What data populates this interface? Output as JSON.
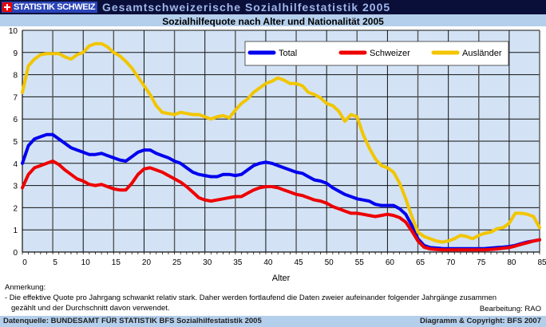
{
  "header": {
    "logo_text": "STATISTIK SCHWEIZ",
    "title": "Gesamtschweizerische Sozialhilfestatistik 2005"
  },
  "footer": {
    "note_title": "Anmerkung:",
    "note_line1": "- Die effektive Quote pro Jahrgang schwankt relativ stark. Daher werden fortlaufend die Daten zweier aufeinander folgender Jahrgänge zusammen",
    "note_line2": "gezählt und der Durchschnitt davon verwendet.",
    "editor": "Bearbeitung: RAO",
    "source": "Datenquelle: BUNDESAMT FÜR STATISTIK BFS Sozialhilfestatistik 2005",
    "copyright": "Diagramm & Copyright:  BFS 2007"
  },
  "chart_data": {
    "type": "line",
    "title": "Sozialhilfequote nach Alter und Nationalität 2005",
    "xlabel": "Alter",
    "ylabel": "",
    "xlim": [
      0,
      85
    ],
    "ylim": [
      0,
      10
    ],
    "grid": true,
    "legend": "top-right",
    "xticks": [
      "0",
      "5",
      "10",
      "15",
      "20",
      "25",
      "30",
      "35",
      "40",
      "45",
      "50",
      "55",
      "60",
      "65",
      "70",
      "75",
      "80",
      "85"
    ],
    "yticks": [
      "0",
      "1",
      "2",
      "3",
      "4",
      "5",
      "6",
      "7",
      "8",
      "9",
      "10"
    ],
    "x": [
      0,
      1,
      2,
      3,
      4,
      5,
      6,
      7,
      8,
      9,
      10,
      11,
      12,
      13,
      14,
      15,
      16,
      17,
      18,
      19,
      20,
      21,
      22,
      23,
      24,
      25,
      26,
      27,
      28,
      29,
      30,
      31,
      32,
      33,
      34,
      35,
      36,
      37,
      38,
      39,
      40,
      41,
      42,
      43,
      44,
      45,
      46,
      47,
      48,
      49,
      50,
      51,
      52,
      53,
      54,
      55,
      56,
      57,
      58,
      59,
      60,
      61,
      62,
      63,
      64,
      65,
      66,
      67,
      68,
      69,
      70,
      71,
      72,
      73,
      74,
      75,
      76,
      77,
      78,
      79,
      80,
      81,
      82,
      83,
      84,
      85
    ],
    "series": [
      {
        "name": "Total",
        "color": "#0000ee",
        "values": [
          4.0,
          4.8,
          5.1,
          5.2,
          5.3,
          5.3,
          5.1,
          4.9,
          4.7,
          4.6,
          4.5,
          4.4,
          4.4,
          4.45,
          4.35,
          4.25,
          4.15,
          4.1,
          4.3,
          4.5,
          4.6,
          4.6,
          4.45,
          4.35,
          4.25,
          4.1,
          4.0,
          3.8,
          3.6,
          3.5,
          3.45,
          3.4,
          3.4,
          3.5,
          3.5,
          3.45,
          3.5,
          3.7,
          3.9,
          4.0,
          4.05,
          4.0,
          3.9,
          3.8,
          3.7,
          3.6,
          3.55,
          3.4,
          3.25,
          3.2,
          3.1,
          2.9,
          2.75,
          2.6,
          2.5,
          2.4,
          2.35,
          2.3,
          2.15,
          2.1,
          2.1,
          2.1,
          1.95,
          1.7,
          1.2,
          0.6,
          0.3,
          0.2,
          0.18,
          0.16,
          0.15,
          0.15,
          0.15,
          0.15,
          0.15,
          0.15,
          0.16,
          0.18,
          0.2,
          0.22,
          0.25,
          0.3,
          0.38,
          0.45,
          0.5,
          0.55
        ]
      },
      {
        "name": "Schweizer",
        "color": "#ee0000",
        "values": [
          2.9,
          3.5,
          3.8,
          3.9,
          4.0,
          4.1,
          3.95,
          3.7,
          3.5,
          3.3,
          3.2,
          3.05,
          3.0,
          3.05,
          2.95,
          2.85,
          2.8,
          2.8,
          3.1,
          3.5,
          3.75,
          3.8,
          3.7,
          3.6,
          3.45,
          3.3,
          3.15,
          2.95,
          2.7,
          2.45,
          2.35,
          2.3,
          2.35,
          2.4,
          2.45,
          2.5,
          2.5,
          2.65,
          2.8,
          2.9,
          2.95,
          2.95,
          2.9,
          2.8,
          2.7,
          2.6,
          2.55,
          2.45,
          2.35,
          2.3,
          2.2,
          2.05,
          1.95,
          1.85,
          1.75,
          1.75,
          1.7,
          1.65,
          1.6,
          1.65,
          1.7,
          1.65,
          1.55,
          1.35,
          0.95,
          0.5,
          0.22,
          0.14,
          0.12,
          0.1,
          0.1,
          0.1,
          0.1,
          0.1,
          0.1,
          0.1,
          0.1,
          0.12,
          0.14,
          0.17,
          0.2,
          0.27,
          0.35,
          0.42,
          0.5,
          0.55
        ]
      },
      {
        "name": "Ausländer",
        "color": "#f2c500",
        "values": [
          7.2,
          8.4,
          8.7,
          8.9,
          8.95,
          8.95,
          8.95,
          8.8,
          8.7,
          8.9,
          9.0,
          9.3,
          9.4,
          9.4,
          9.25,
          9.0,
          8.85,
          8.6,
          8.3,
          7.9,
          7.5,
          7.1,
          6.6,
          6.3,
          6.25,
          6.2,
          6.3,
          6.25,
          6.2,
          6.2,
          6.1,
          6.0,
          6.1,
          6.15,
          6.05,
          6.4,
          6.7,
          6.9,
          7.2,
          7.4,
          7.6,
          7.7,
          7.85,
          7.75,
          7.6,
          7.6,
          7.5,
          7.2,
          7.1,
          6.95,
          6.7,
          6.6,
          6.35,
          5.9,
          6.2,
          6.1,
          5.3,
          4.7,
          4.2,
          3.9,
          3.8,
          3.6,
          3.1,
          2.4,
          1.6,
          0.9,
          0.7,
          0.6,
          0.5,
          0.45,
          0.5,
          0.6,
          0.75,
          0.7,
          0.6,
          0.75,
          0.85,
          0.9,
          1.05,
          1.1,
          1.3,
          1.75,
          1.75,
          1.7,
          1.6,
          1.1
        ]
      }
    ]
  }
}
